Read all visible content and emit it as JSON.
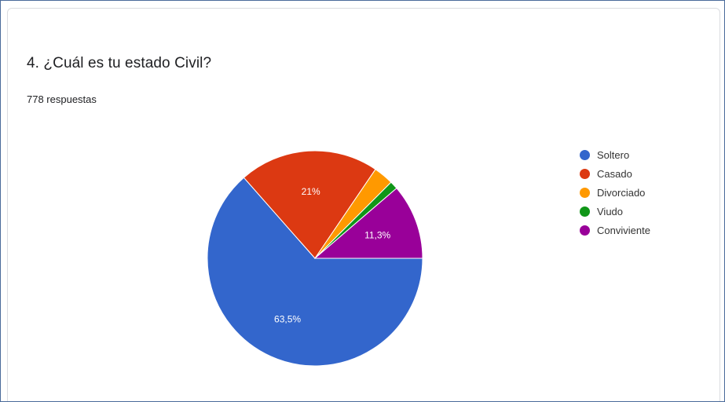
{
  "question": {
    "title": "4. ¿Cuál es tu estado Civil?",
    "response_count": "778 respuestas"
  },
  "chart_data": {
    "type": "pie",
    "title": "4. ¿Cuál es tu estado Civil?",
    "legend_position": "right",
    "slices": [
      {
        "name": "Soltero",
        "value": 63.5,
        "label": "63,5%",
        "color": "#3366cc"
      },
      {
        "name": "Casado",
        "value": 21,
        "label": "21%",
        "color": "#dc3912"
      },
      {
        "name": "Divorciado",
        "value": 3.0,
        "label": "",
        "color": "#ff9900"
      },
      {
        "name": "Viudo",
        "value": 1.2,
        "label": "",
        "color": "#109618"
      },
      {
        "name": "Conviviente",
        "value": 11.3,
        "label": "11,3%",
        "color": "#990099"
      }
    ]
  }
}
